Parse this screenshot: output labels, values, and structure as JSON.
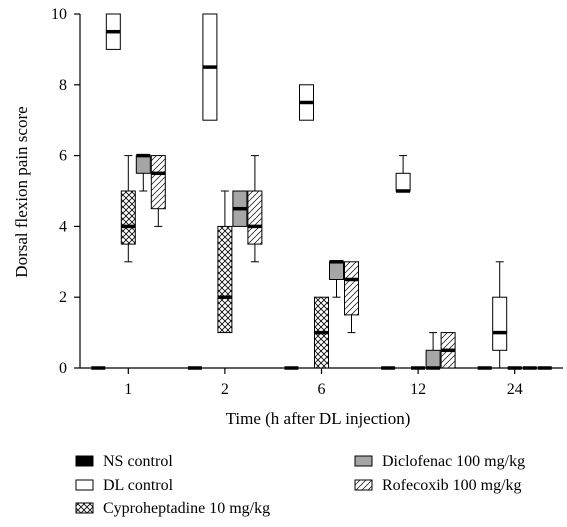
{
  "chart_data": {
    "type": "boxplot",
    "xlabel": "Time (h after DL injection)",
    "ylabel": "Dorsal flexion pain score",
    "categories": [
      "1",
      "2",
      "6",
      "12",
      "24"
    ],
    "ylim": [
      0,
      10
    ],
    "yticks": [
      "0",
      "2",
      "4",
      "6",
      "8",
      "10"
    ],
    "grid": false,
    "legend_position": "bottom",
    "series": [
      {
        "name": "NS control",
        "pattern": "solid-black",
        "boxes": [
          {
            "min": 0,
            "q1": 0,
            "median": 0,
            "q3": 0,
            "max": 0
          },
          {
            "min": 0,
            "q1": 0,
            "median": 0,
            "q3": 0,
            "max": 0
          },
          {
            "min": 0,
            "q1": 0,
            "median": 0,
            "q3": 0,
            "max": 0
          },
          {
            "min": 0,
            "q1": 0,
            "median": 0,
            "q3": 0,
            "max": 0
          },
          {
            "min": 0,
            "q1": 0,
            "median": 0,
            "q3": 0,
            "max": 0
          }
        ]
      },
      {
        "name": "DL control",
        "pattern": "white",
        "boxes": [
          {
            "min": 9,
            "q1": 9,
            "median": 9.5,
            "q3": 10,
            "max": 10
          },
          {
            "min": 7,
            "q1": 7,
            "median": 8.5,
            "q3": 10,
            "max": 10
          },
          {
            "min": 7,
            "q1": 7,
            "median": 7.5,
            "q3": 8,
            "max": 8
          },
          {
            "min": 5,
            "q1": 5,
            "median": 5,
            "q3": 5.5,
            "max": 6
          },
          {
            "min": 0,
            "q1": 0.5,
            "median": 1,
            "q3": 2,
            "max": 3
          }
        ]
      },
      {
        "name": "Cyproheptadine 10 mg/kg",
        "pattern": "crosshatch",
        "boxes": [
          {
            "min": 3,
            "q1": 3.5,
            "median": 4,
            "q3": 5,
            "max": 6
          },
          {
            "min": 1,
            "q1": 1,
            "median": 2,
            "q3": 4,
            "max": 5
          },
          {
            "min": 0,
            "q1": 0,
            "median": 1,
            "q3": 2,
            "max": 2
          },
          {
            "min": 0,
            "q1": 0,
            "median": 0,
            "q3": 0,
            "max": 0
          },
          {
            "min": 0,
            "q1": 0,
            "median": 0,
            "q3": 0,
            "max": 0
          }
        ]
      },
      {
        "name": "Diclofenac 100 mg/kg",
        "pattern": "gray",
        "boxes": [
          {
            "min": 5,
            "q1": 5.5,
            "median": 6,
            "q3": 6,
            "max": 6
          },
          {
            "min": 4,
            "q1": 4,
            "median": 4.5,
            "q3": 5,
            "max": 5
          },
          {
            "min": 2,
            "q1": 2.5,
            "median": 3,
            "q3": 3,
            "max": 3
          },
          {
            "min": 0,
            "q1": 0,
            "median": 0,
            "q3": 0.5,
            "max": 1
          },
          {
            "min": 0,
            "q1": 0,
            "median": 0,
            "q3": 0,
            "max": 0
          }
        ]
      },
      {
        "name": "Rofecoxib 100 mg/kg",
        "pattern": "diagonal",
        "boxes": [
          {
            "min": 4,
            "q1": 4.5,
            "median": 5.5,
            "q3": 6,
            "max": 6
          },
          {
            "min": 3,
            "q1": 3.5,
            "median": 4,
            "q3": 5,
            "max": 6
          },
          {
            "min": 1,
            "q1": 1.5,
            "median": 2.5,
            "q3": 3,
            "max": 3
          },
          {
            "min": 0,
            "q1": 0,
            "median": 0.5,
            "q3": 1,
            "max": 1
          },
          {
            "min": 0,
            "q1": 0,
            "median": 0,
            "q3": 0,
            "max": 0
          }
        ]
      }
    ]
  }
}
